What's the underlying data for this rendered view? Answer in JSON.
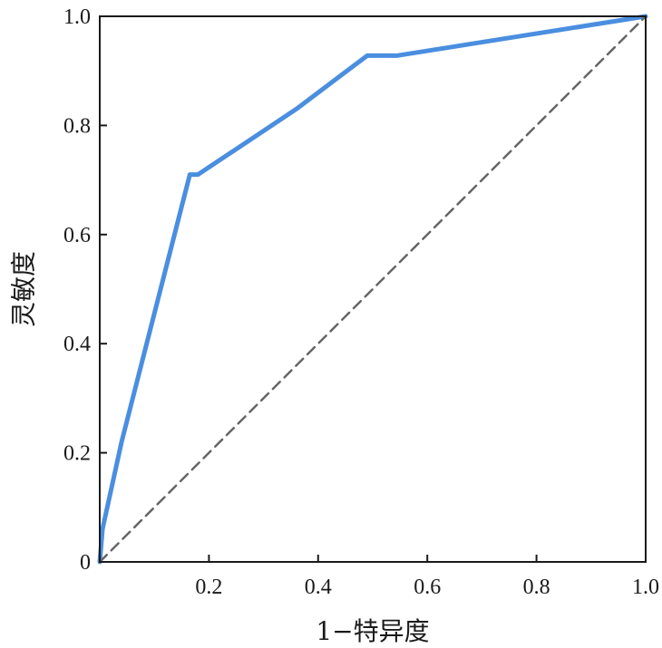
{
  "chart_data": {
    "type": "line",
    "title": "",
    "xlabel": "1−特异度",
    "ylabel": "灵敏度",
    "xlim": [
      0,
      1
    ],
    "ylim": [
      0,
      1
    ],
    "x_ticks": [
      "0.2",
      "0.4",
      "0.6",
      "0.8",
      "1.0"
    ],
    "x_tick_values": [
      0.2,
      0.4,
      0.6,
      0.8,
      1.0
    ],
    "y_ticks": [
      "0",
      "0.2",
      "0.4",
      "0.6",
      "0.8",
      "1.0"
    ],
    "y_tick_values": [
      0,
      0.2,
      0.4,
      0.6,
      0.8,
      1.0
    ],
    "grid": false,
    "series": [
      {
        "style": "solid",
        "color": "#4a8ee0",
        "x": [
          0.0,
          0.005,
          0.04,
          0.165,
          0.18,
          0.36,
          0.49,
          0.545,
          1.0
        ],
        "y": [
          0.0,
          0.06,
          0.22,
          0.71,
          0.71,
          0.83,
          0.928,
          0.928,
          1.0
        ]
      },
      {
        "style": "dashed",
        "color": "#666666",
        "x": [
          0.0,
          1.0
        ],
        "y": [
          0.0,
          1.0
        ]
      }
    ]
  }
}
